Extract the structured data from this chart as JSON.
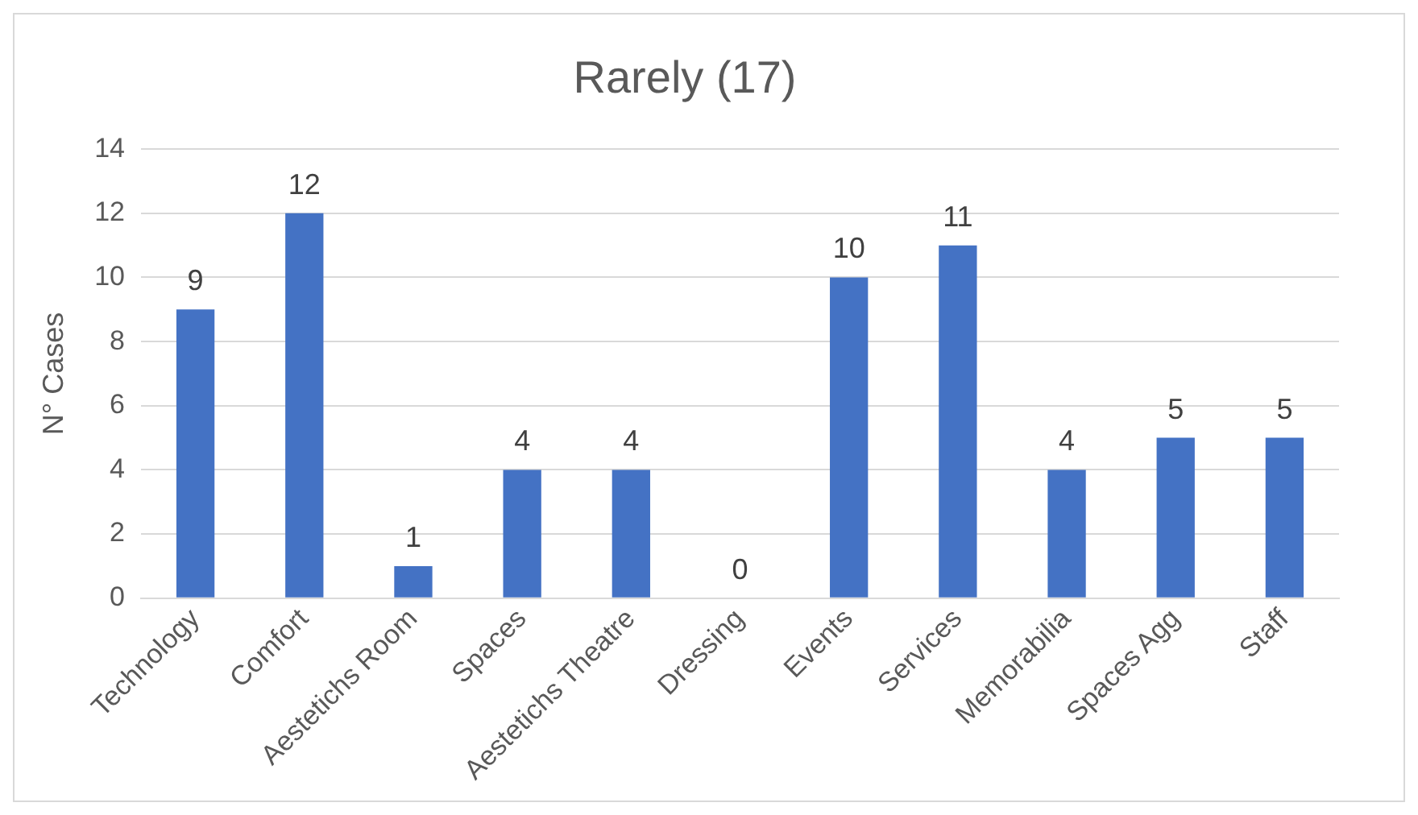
{
  "chart_data": {
    "type": "bar",
    "title": "Rarely (17)",
    "ylabel": "N° Cases",
    "categories": [
      "Technology",
      "Comfort",
      "Aestetichs Room",
      "Spaces",
      "Aestetichs Theatre",
      "Dressing",
      "Events",
      "Services",
      "Memorabilia",
      "Spaces Agg",
      "Staff"
    ],
    "values": [
      9,
      12,
      1,
      4,
      4,
      0,
      10,
      11,
      4,
      5,
      5
    ],
    "color": "#4472c4",
    "ylim": [
      0,
      14
    ],
    "yticks": [
      0,
      2,
      4,
      6,
      8,
      10,
      12,
      14
    ],
    "grid": "y",
    "data_labels": true
  }
}
